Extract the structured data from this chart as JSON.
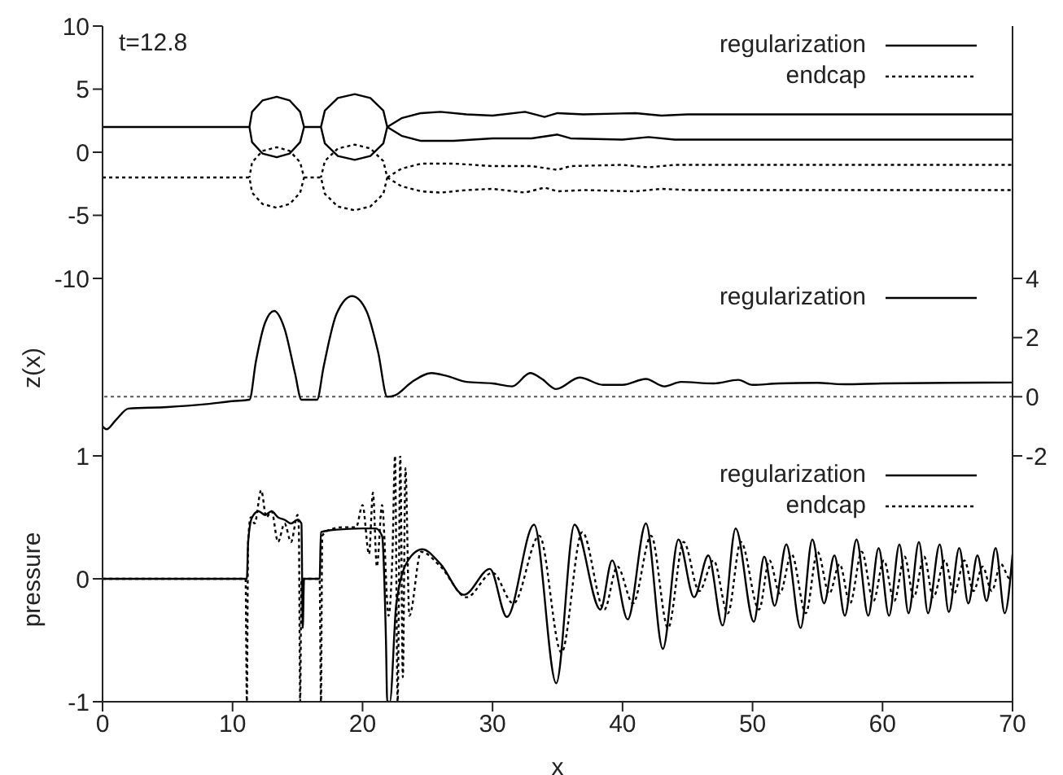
{
  "chart_data": [
    {
      "type": "line",
      "annotations": [
        "t=12.8"
      ],
      "xlim": [
        0,
        70
      ],
      "xticks": [
        0,
        10,
        20,
        30,
        40,
        50,
        60,
        70
      ],
      "ylim": [
        -10,
        10
      ],
      "yticks": [
        -10,
        -5,
        0,
        5,
        10
      ],
      "tick_labels": "y",
      "legend": "top right",
      "series": [
        {
          "name": "regularization",
          "color": "#000000",
          "line_style": "solid",
          "x": [
            0,
            11.3,
            11.5,
            12.3,
            13.4,
            14.4,
            15.2,
            15.5,
            15.2,
            14.4,
            13.4,
            12.3,
            11.5,
            11.3,
            null,
            15.5,
            16.8,
            17.1,
            18.1,
            19.4,
            20.6,
            21.6,
            21.9,
            21.6,
            20.6,
            19.4,
            18.1,
            17.1,
            16.8,
            null,
            21.9,
            23,
            24.5,
            26,
            28,
            30,
            32.5,
            34,
            35,
            37,
            41,
            43,
            45,
            50,
            60,
            70,
            null,
            21.9,
            23,
            24.5,
            27,
            30,
            33,
            35,
            36,
            40,
            42,
            44,
            50,
            70
          ],
          "values": [
            2,
            2,
            3.2,
            4.1,
            4.4,
            4.1,
            3.2,
            2,
            0.8,
            -0.1,
            -0.4,
            -0.1,
            0.8,
            2,
            null,
            2,
            2,
            3.3,
            4.3,
            4.6,
            4.3,
            3.3,
            2,
            0.7,
            -0.3,
            -0.6,
            -0.3,
            0.7,
            2,
            null,
            2,
            2.7,
            3.1,
            3.2,
            3.0,
            2.9,
            3.2,
            2.8,
            3.1,
            3.0,
            3.1,
            2.9,
            3.0,
            3.0,
            3.0,
            3.0,
            null,
            2,
            1.3,
            0.9,
            0.9,
            1.1,
            1.1,
            1.4,
            1.1,
            1.0,
            1.2,
            1.0,
            1.0,
            1.0
          ]
        },
        {
          "name": "endcap",
          "color": "#000000",
          "line_style": "dotted",
          "x": [
            0,
            11.3,
            11.5,
            12.3,
            13.4,
            14.4,
            15.2,
            15.5,
            15.2,
            14.4,
            13.4,
            12.3,
            11.5,
            11.3,
            null,
            15.5,
            16.8,
            17.1,
            18.1,
            19.4,
            20.6,
            21.6,
            21.9,
            21.6,
            20.6,
            19.4,
            18.1,
            17.1,
            16.8,
            null,
            21.9,
            23,
            24.5,
            26,
            28,
            30,
            32.5,
            34,
            35,
            37,
            41,
            43,
            45,
            50,
            60,
            70,
            null,
            21.9,
            23,
            24.5,
            27,
            30,
            33,
            35,
            36,
            40,
            42,
            44,
            50,
            70
          ],
          "values": [
            -2,
            -2,
            -3.2,
            -4.1,
            -4.4,
            -4.1,
            -3.2,
            -2,
            -0.8,
            0.1,
            0.4,
            0.1,
            -0.8,
            -2,
            null,
            -2,
            -2,
            -3.3,
            -4.3,
            -4.6,
            -4.3,
            -3.3,
            -2,
            -0.7,
            0.3,
            0.6,
            0.3,
            -0.7,
            -2,
            null,
            -2,
            -2.7,
            -3.1,
            -3.2,
            -3.0,
            -2.9,
            -3.2,
            -2.8,
            -3.1,
            -3.0,
            -3.1,
            -2.9,
            -3.0,
            -3.0,
            -3.0,
            -3.0,
            null,
            -2,
            -1.3,
            -0.9,
            -0.9,
            -1.1,
            -1.1,
            -1.4,
            -1.1,
            -1.0,
            -1.2,
            -1.0,
            -1.0,
            -1.0
          ]
        }
      ]
    },
    {
      "type": "line",
      "ylabel": "z(x)",
      "xlim": [
        0,
        70
      ],
      "xticks": [
        0,
        10,
        20,
        30,
        40,
        50,
        60,
        70
      ],
      "y2lim": [
        -2,
        4
      ],
      "y2ticks": [
        -2,
        0,
        2,
        4
      ],
      "tick_labels": "y",
      "legend": "top right",
      "ref_lines": [
        {
          "axis": "y2",
          "value": 0,
          "color": "#555555",
          "line_style": "dotted"
        }
      ],
      "series": [
        {
          "name": "regularization",
          "color": "#000000",
          "line_style": "solid",
          "axis": "y2",
          "x": [
            0,
            0.3,
            1,
            2,
            5,
            8,
            10,
            11.3,
            11.8,
            12.5,
            13.2,
            14,
            14.8,
            15.3,
            16.5,
            17,
            18,
            19.2,
            20.3,
            21.2,
            21.9,
            22.5,
            23.8,
            25.3,
            26.5,
            28,
            30,
            31.5,
            32.9,
            33.8,
            34.9,
            36.7,
            38.5,
            40,
            41.8,
            43.2,
            44.5,
            47,
            48.9,
            50,
            52,
            55,
            57,
            60,
            65,
            70
          ],
          "values": [
            -1.0,
            -1.1,
            -0.8,
            -0.4,
            -0.35,
            -0.25,
            -0.15,
            -0.1,
            1.2,
            2.5,
            2.9,
            2.3,
            0.8,
            -0.1,
            -0.1,
            1.0,
            2.8,
            3.4,
            2.9,
            1.5,
            0.0,
            0.05,
            0.5,
            0.8,
            0.7,
            0.5,
            0.45,
            0.35,
            0.8,
            0.6,
            0.26,
            0.65,
            0.4,
            0.4,
            0.6,
            0.35,
            0.5,
            0.45,
            0.57,
            0.4,
            0.45,
            0.47,
            0.42,
            0.45,
            0.47,
            0.48
          ]
        }
      ]
    },
    {
      "type": "line",
      "xlabel": "x",
      "ylabel": "pressure",
      "xlim": [
        0,
        70
      ],
      "xticks": [
        0,
        10,
        20,
        30,
        40,
        50,
        60,
        70
      ],
      "ylim": [
        -1,
        1
      ],
      "yticks": [
        -1,
        0,
        1
      ],
      "legend": "top right",
      "series": [
        {
          "name": "regularization",
          "color": "#000000",
          "line_style": "solid",
          "x": [
            0,
            11.1,
            11.2,
            11.5,
            12,
            12.5,
            13,
            13.5,
            14,
            14.5,
            15,
            15.3,
            15.4,
            15.5,
            15.6,
            16.6,
            16.7,
            16.8,
            18,
            20,
            21,
            21.5,
            21.8,
            21.9,
            22.1,
            22.6,
            23.5,
            24.6,
            26,
            27.8,
            29.8,
            31.1,
            33.2,
            34.9,
            36.3,
            38.3,
            39.2,
            40.4,
            41.8,
            43.1,
            44.3,
            45.5,
            46.6,
            47.7,
            48.7,
            50.1,
            50.9,
            51.7,
            52.6,
            53.7,
            54.6,
            55.5,
            56.3,
            57.1,
            58.0,
            58.9,
            59.7,
            60.5,
            61.3,
            62.0,
            62.8,
            63.5,
            64.4,
            65.1,
            65.9,
            66.6,
            67.3,
            68.0,
            68.7,
            69.4,
            70
          ],
          "values": [
            0,
            0,
            0.3,
            0.5,
            0.55,
            0.52,
            0.55,
            0.5,
            0.48,
            0.45,
            0.48,
            0.45,
            -0.4,
            0.0,
            0.0,
            0.0,
            0.0,
            0.38,
            0.4,
            0.41,
            0.41,
            0.35,
            -0.5,
            -1,
            -1,
            -0.2,
            0.15,
            0.24,
            0.12,
            -0.13,
            0.08,
            -0.31,
            0.44,
            -0.85,
            0.44,
            -0.25,
            0.15,
            -0.33,
            0.45,
            -0.57,
            0.32,
            -0.15,
            0.19,
            -0.38,
            0.41,
            -0.35,
            0.18,
            -0.22,
            0.28,
            -0.4,
            0.32,
            -0.2,
            0.19,
            -0.3,
            0.32,
            -0.3,
            0.25,
            -0.3,
            0.28,
            -0.28,
            0.3,
            -0.28,
            0.28,
            -0.27,
            0.25,
            -0.2,
            0.19,
            -0.18,
            0.25,
            -0.28,
            0.2
          ]
        },
        {
          "name": "endcap",
          "color": "#000000",
          "line_style": "dotted",
          "x": [
            0,
            11.0,
            11.1,
            11.2,
            11.4,
            11.7,
            12.2,
            12.6,
            13,
            13.5,
            14,
            14.5,
            15,
            15.1,
            15.2,
            15.3,
            15.5,
            16.7,
            16.8,
            16.9,
            17.5,
            18.5,
            19.5,
            20,
            20.5,
            20.8,
            21.1,
            21.5,
            22.0,
            22.3,
            22.5,
            22.7,
            22.9,
            23.1,
            23.3,
            23.6,
            24.5,
            26,
            28,
            30,
            31.6,
            33.6,
            35.3,
            36.9,
            38.6,
            39.6,
            40.8,
            42.2,
            43.5,
            44.7,
            45.9,
            47,
            48.1,
            49.1,
            50.5,
            51.3,
            52.1,
            53,
            54.1,
            55,
            55.9,
            56.7,
            57.5,
            58.4,
            59.3,
            60.1,
            60.9,
            61.7,
            62.4,
            63.2,
            63.9,
            64.8,
            65.5,
            66.3,
            67,
            67.7,
            68.4,
            69.1,
            69.8,
            70
          ],
          "values": [
            0,
            0,
            -1,
            0.3,
            0.5,
            0.45,
            0.72,
            0.5,
            0.55,
            0.3,
            0.45,
            0.3,
            0.52,
            0.4,
            -1,
            0,
            0,
            0,
            -1,
            0.35,
            0.4,
            0.42,
            0.42,
            0.6,
            0.2,
            0.7,
            0.1,
            0.6,
            -0.3,
            0.2,
            1,
            -1,
            1,
            -0.8,
            0.9,
            -0.3,
            0.22,
            0.1,
            -0.15,
            0.05,
            -0.2,
            0.35,
            -0.6,
            0.38,
            -0.25,
            0.1,
            -0.2,
            0.35,
            -0.4,
            0.3,
            -0.1,
            0.15,
            -0.28,
            0.3,
            -0.25,
            0.15,
            -0.12,
            0.2,
            -0.28,
            0.22,
            -0.12,
            0.12,
            -0.2,
            0.22,
            -0.18,
            0.15,
            -0.18,
            0.18,
            -0.15,
            0.18,
            -0.15,
            0.15,
            -0.12,
            0.15,
            -0.1,
            0.1,
            -0.1,
            0.12,
            0,
            0
          ]
        }
      ]
    }
  ]
}
